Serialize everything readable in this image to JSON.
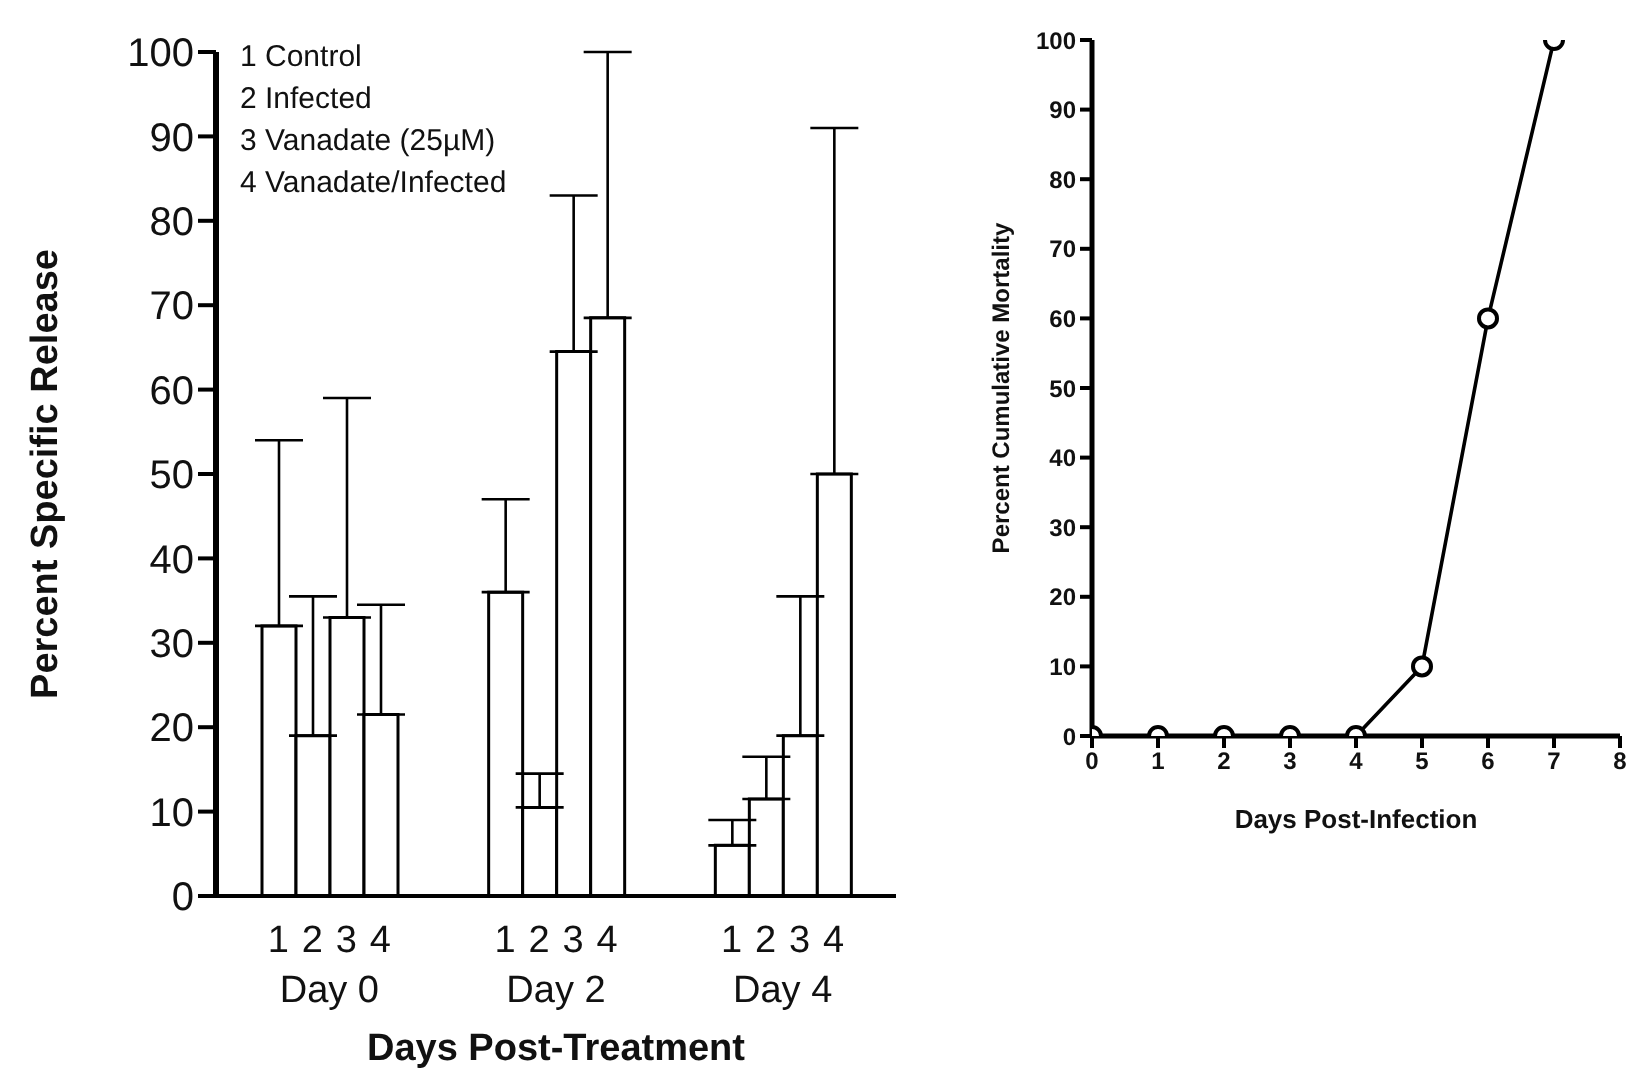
{
  "chart_data": [
    {
      "type": "bar",
      "categories": [
        "Day 0",
        "Day 2",
        "Day 4"
      ],
      "series": [
        {
          "name": "1",
          "color": "#ffffff",
          "values": [
            32,
            36,
            6
          ],
          "errors": [
            [
              32,
              54
            ],
            [
              36,
              47
            ],
            [
              6,
              9
            ]
          ]
        },
        {
          "name": "2",
          "color": "#ffffff",
          "values": [
            19,
            10.5,
            11.5
          ],
          "errors": [
            [
              19,
              35.5
            ],
            [
              10.5,
              14.5
            ],
            [
              11.5,
              16.5
            ]
          ]
        },
        {
          "name": "3",
          "color": "#ffffff",
          "values": [
            33,
            64.5,
            19
          ],
          "errors": [
            [
              33,
              59
            ],
            [
              64.5,
              83
            ],
            [
              19,
              35.5
            ]
          ]
        },
        {
          "name": "4",
          "color": "#ffffff",
          "values": [
            21.5,
            68.5,
            50
          ],
          "errors": [
            [
              21.5,
              34.5
            ],
            [
              68.5,
              100
            ],
            [
              50,
              91
            ]
          ]
        }
      ],
      "xlabel": "Days Post-Treatment",
      "ylabel": "Percent Specific Release",
      "ylim": [
        0,
        100
      ],
      "yticks": [
        0,
        10,
        20,
        30,
        40,
        50,
        60,
        70,
        80,
        90,
        100
      ],
      "annotations": [
        "1 Control",
        "2 Infected",
        "3 Vanadate (25µM)",
        "4 Vanadate/Infected"
      ]
    },
    {
      "type": "line",
      "x": [
        0,
        1,
        2,
        3,
        4,
        5,
        6,
        7
      ],
      "values": [
        0,
        0,
        0,
        0,
        0,
        10,
        60,
        100
      ],
      "color": "#000000",
      "marker": "circle",
      "xlabel": "Days Post-Infection",
      "ylabel": "Percent Cumulative Mortality",
      "xlim": [
        0,
        8
      ],
      "xticks": [
        0,
        1,
        2,
        3,
        4,
        5,
        6,
        7,
        8
      ],
      "ylim": [
        0,
        100
      ],
      "yticks": [
        0,
        10,
        20,
        30,
        40,
        50,
        60,
        70,
        80,
        90,
        100
      ]
    }
  ]
}
